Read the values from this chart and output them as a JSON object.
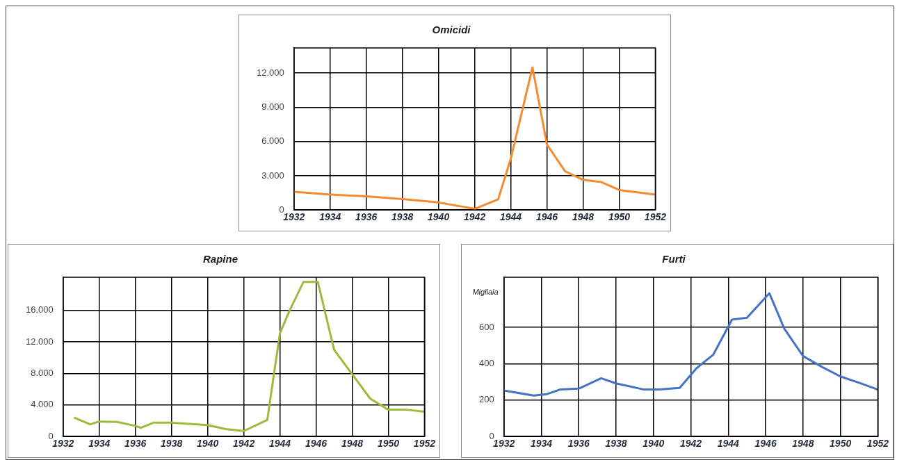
{
  "chart_data": [
    {
      "type": "line",
      "title": "Omicidi",
      "xlim": [
        1932,
        1952
      ],
      "xticks": [
        1932,
        1934,
        1936,
        1938,
        1940,
        1942,
        1944,
        1946,
        1948,
        1950,
        1952
      ],
      "ylim": [
        0,
        14200
      ],
      "yticks": [
        {
          "value": 0,
          "label": "0"
        },
        {
          "value": 3000,
          "label": "3.000"
        },
        {
          "value": 6000,
          "label": "6.000"
        },
        {
          "value": 9000,
          "label": "9.000"
        },
        {
          "value": 12000,
          "label": "12.000"
        }
      ],
      "grid": true,
      "marker": "none",
      "series": [
        {
          "color": "#f58b2e",
          "x": [
            1932,
            1934,
            1936,
            1938,
            1940,
            1942,
            1943.3,
            1944,
            1945.2,
            1946,
            1947,
            1948,
            1949,
            1950,
            1952
          ],
          "values": [
            1600,
            1350,
            1200,
            950,
            660,
            100,
            930,
            4500,
            12500,
            5750,
            3400,
            2640,
            2450,
            1750,
            1350
          ]
        }
      ]
    },
    {
      "type": "line",
      "title": "Rapine",
      "xlim": [
        1932,
        1952
      ],
      "xticks": [
        1932,
        1934,
        1936,
        1938,
        1940,
        1942,
        1944,
        1946,
        1948,
        1950,
        1952
      ],
      "ylim": [
        0,
        20200
      ],
      "yticks": [
        {
          "value": 0,
          "label": "0"
        },
        {
          "value": 4000,
          "label": "4.000"
        },
        {
          "value": 8000,
          "label": "8.000"
        },
        {
          "value": 12000,
          "label": "12.000"
        },
        {
          "value": 16000,
          "label": "16.000"
        }
      ],
      "grid": true,
      "marker": "none",
      "series": [
        {
          "color": "#9bbb3b",
          "x": [
            1932.6,
            1933.5,
            1934,
            1935,
            1936,
            1936.3,
            1937,
            1938,
            1940,
            1941,
            1942,
            1943.3,
            1944,
            1944.5,
            1945.3,
            1946.1,
            1947,
            1948,
            1949,
            1950,
            1951,
            1952
          ],
          "values": [
            2400,
            1550,
            1900,
            1850,
            1350,
            1100,
            1750,
            1750,
            1450,
            950,
            700,
            2100,
            13100,
            15800,
            19600,
            19600,
            11000,
            7900,
            4800,
            3400,
            3400,
            3150
          ]
        }
      ]
    },
    {
      "type": "line",
      "title": "Furti",
      "ylabel": "Migliaia",
      "xlim": [
        1932,
        1952
      ],
      "xticks": [
        1932,
        1934,
        1936,
        1938,
        1940,
        1942,
        1944,
        1946,
        1948,
        1950,
        1952
      ],
      "ylim": [
        0,
        875
      ],
      "yticks": [
        0,
        200,
        400,
        600
      ],
      "grid": true,
      "marker": "none",
      "series": [
        {
          "color": "#4472c4",
          "x": [
            1932,
            1933.6,
            1934.3,
            1935,
            1936,
            1937.2,
            1938,
            1939.5,
            1940.3,
            1941.4,
            1942.3,
            1943.2,
            1944.2,
            1945,
            1946.2,
            1947,
            1948,
            1949,
            1950,
            1951,
            1952
          ],
          "values": [
            253,
            225,
            233,
            258,
            263,
            320,
            292,
            258,
            258,
            267,
            375,
            450,
            642,
            653,
            787,
            592,
            442,
            383,
            330,
            295,
            258
          ]
        }
      ]
    }
  ]
}
